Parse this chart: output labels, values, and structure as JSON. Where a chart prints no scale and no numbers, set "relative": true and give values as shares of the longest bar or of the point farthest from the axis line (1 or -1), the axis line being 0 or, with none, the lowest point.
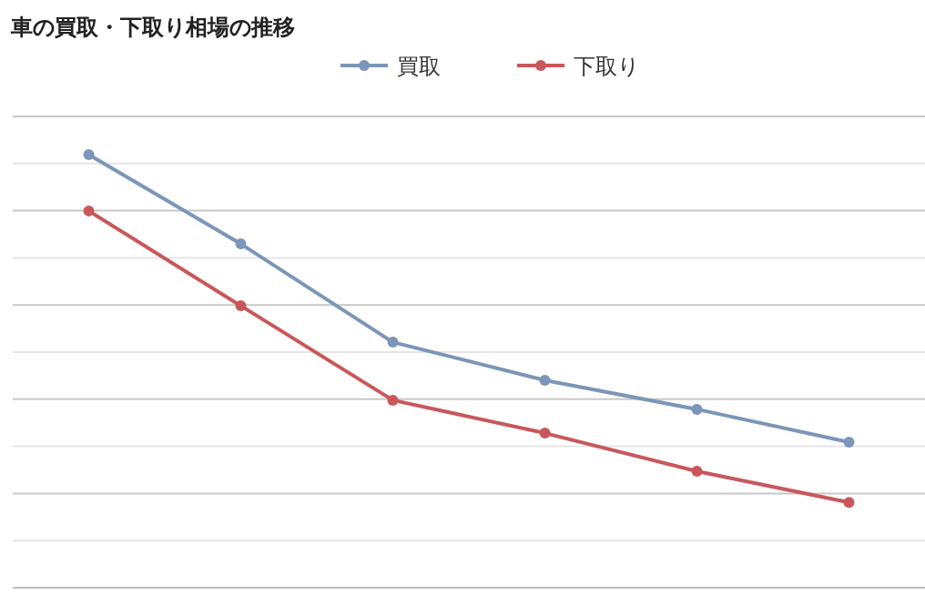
{
  "chart_data": {
    "type": "line",
    "title": "車の買取・下取り相場の推移",
    "categories": [
      null,
      null,
      null,
      null,
      null,
      null
    ],
    "relative": true,
    "grid": "y",
    "legend": "top",
    "marker": "circle",
    "line_style": "solid",
    "series": [
      {
        "name": "買取",
        "color": "#7b96b8",
        "values": [
          1,
          0.794,
          0.567,
          0.479,
          0.412,
          0.336
        ]
      },
      {
        "name": "下取り",
        "color": "#c9575a",
        "values": [
          0.87,
          0.651,
          0.433,
          0.357,
          0.269,
          0.197
        ]
      }
    ]
  }
}
